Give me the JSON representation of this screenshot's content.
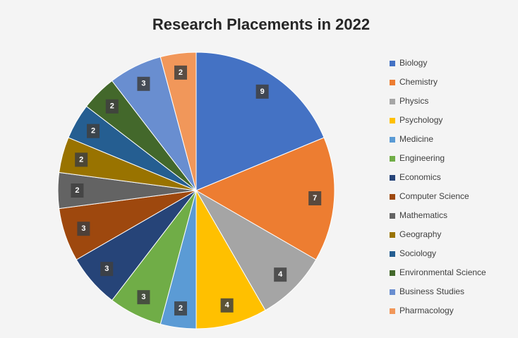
{
  "chart_data": {
    "type": "pie",
    "title": "Research Placements in 2022",
    "categories": [
      "Biology",
      "Chemistry",
      "Physics",
      "Psychology",
      "Medicine",
      "Engineering",
      "Economics",
      "Computer Science",
      "Mathematics",
      "Geography",
      "Sociology",
      "Environmental Science",
      "Business Studies",
      "Pharmacology"
    ],
    "values": [
      9,
      7,
      4,
      4,
      2,
      3,
      3,
      3,
      2,
      2,
      2,
      2,
      3,
      2
    ],
    "colors": [
      "#4472c4",
      "#ed7d31",
      "#a5a5a5",
      "#ffc000",
      "#5b9bd5",
      "#70ad47",
      "#264478",
      "#9e480e",
      "#636363",
      "#997300",
      "#255e91",
      "#43682b",
      "#698ed0",
      "#f1975a"
    ],
    "legend": "right",
    "data_labels": true
  }
}
